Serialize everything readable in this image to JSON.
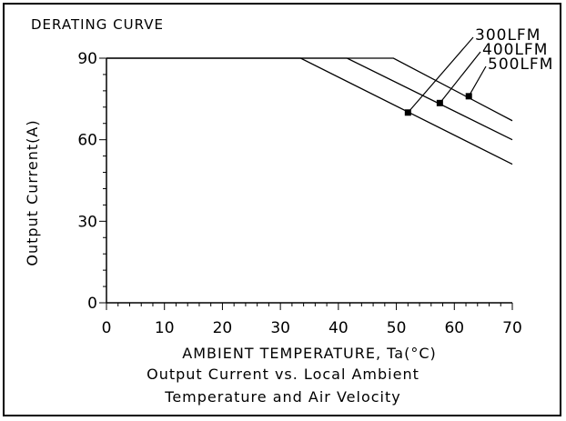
{
  "chart_data": {
    "type": "line",
    "title": "DERATING CURVE",
    "xlabel": "AMBIENT TEMPERATURE, Ta(°C)",
    "ylabel": "Output Current(A)",
    "caption_line1": "Output Current vs. Local Ambient",
    "caption_line2": "Temperature and Air Velocity",
    "xlim": [
      0,
      70
    ],
    "ylim": [
      0,
      90
    ],
    "x_ticks": [
      0,
      10,
      20,
      30,
      40,
      50,
      60,
      70
    ],
    "y_ticks": [
      0,
      30,
      60,
      90
    ],
    "grid": false,
    "series": [
      {
        "name": "300LFM",
        "x": [
          0,
          33.5,
          70
        ],
        "y": [
          90,
          90,
          51
        ]
      },
      {
        "name": "400LFM",
        "x": [
          0,
          41.5,
          70
        ],
        "y": [
          90,
          90,
          60
        ]
      },
      {
        "name": "500LFM",
        "x": [
          0,
          49.5,
          70
        ],
        "y": [
          90,
          90,
          67
        ]
      }
    ],
    "annotations": [
      {
        "text": "300LFM",
        "point": [
          52,
          70
        ]
      },
      {
        "text": "400LFM",
        "point": [
          57.5,
          73.5
        ]
      },
      {
        "text": "500LFM",
        "point": [
          62.5,
          76
        ]
      }
    ]
  }
}
